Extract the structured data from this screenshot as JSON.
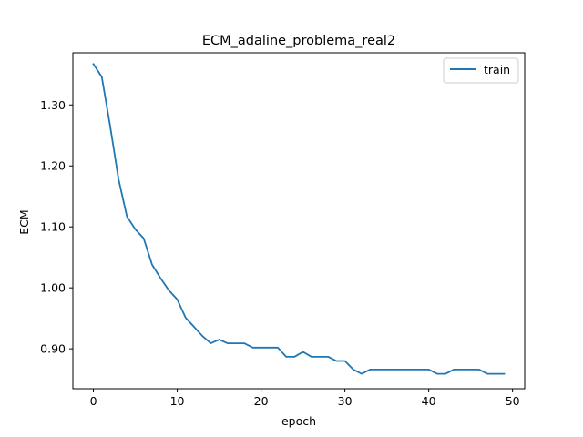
{
  "chart_data": {
    "type": "line",
    "title": "ECM_adaline_problema_real2",
    "xlabel": "epoch",
    "ylabel": "ECM",
    "xlim": [
      -2.45,
      51.45
    ],
    "ylim": [
      0.8345,
      1.3855
    ],
    "x_ticks": [
      0,
      10,
      20,
      30,
      40,
      50
    ],
    "x_tick_labels": [
      "0",
      "10",
      "20",
      "30",
      "40",
      "50"
    ],
    "y_ticks": [
      0.9,
      1.0,
      1.1,
      1.2,
      1.3
    ],
    "y_tick_labels": [
      "0.90",
      "1.00",
      "1.10",
      "1.20",
      "1.30"
    ],
    "grid": false,
    "legend_position": "top-right",
    "series": [
      {
        "name": "train",
        "color": "#1f77b4",
        "x": [
          0,
          1,
          2,
          3,
          4,
          5,
          6,
          7,
          8,
          9,
          10,
          11,
          12,
          13,
          14,
          15,
          16,
          17,
          18,
          19,
          20,
          21,
          22,
          23,
          24,
          25,
          26,
          27,
          28,
          29,
          30,
          31,
          32,
          33,
          34,
          35,
          36,
          37,
          38,
          39,
          40,
          41,
          42,
          43,
          44,
          45,
          46,
          47,
          48,
          49
        ],
        "values": [
          1.367,
          1.346,
          1.265,
          1.178,
          1.117,
          1.096,
          1.081,
          1.038,
          1.016,
          0.996,
          0.981,
          0.951,
          0.936,
          0.921,
          0.909,
          0.915,
          0.909,
          0.909,
          0.909,
          0.902,
          0.902,
          0.902,
          0.902,
          0.887,
          0.887,
          0.895,
          0.887,
          0.887,
          0.887,
          0.88,
          0.88,
          0.866,
          0.859,
          0.866,
          0.866,
          0.866,
          0.866,
          0.866,
          0.866,
          0.866,
          0.866,
          0.859,
          0.859,
          0.866,
          0.866,
          0.866,
          0.866,
          0.859,
          0.859,
          0.859
        ]
      }
    ]
  }
}
